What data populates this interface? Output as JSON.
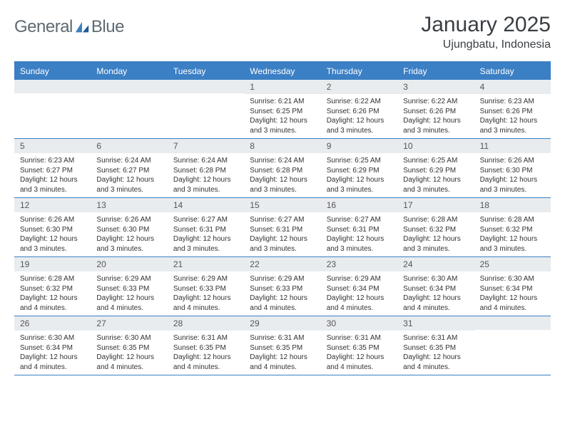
{
  "logo": {
    "text1": "General",
    "text2": "Blue"
  },
  "title": "January 2025",
  "location": "Ujungbatu, Indonesia",
  "colors": {
    "header_bg": "#3b7fc4",
    "header_text": "#ffffff",
    "daynum_bg": "#e9ecef",
    "border": "#3b7fc4",
    "body_text": "#333333",
    "logo_gray": "#5f6a72",
    "logo_blue": "#3b7fc4"
  },
  "weekdays": [
    "Sunday",
    "Monday",
    "Tuesday",
    "Wednesday",
    "Thursday",
    "Friday",
    "Saturday"
  ],
  "weeks": [
    [
      {
        "n": "",
        "sunrise": "",
        "sunset": "",
        "daylight": ""
      },
      {
        "n": "",
        "sunrise": "",
        "sunset": "",
        "daylight": ""
      },
      {
        "n": "",
        "sunrise": "",
        "sunset": "",
        "daylight": ""
      },
      {
        "n": "1",
        "sunrise": "Sunrise: 6:21 AM",
        "sunset": "Sunset: 6:25 PM",
        "daylight": "Daylight: 12 hours and 3 minutes."
      },
      {
        "n": "2",
        "sunrise": "Sunrise: 6:22 AM",
        "sunset": "Sunset: 6:26 PM",
        "daylight": "Daylight: 12 hours and 3 minutes."
      },
      {
        "n": "3",
        "sunrise": "Sunrise: 6:22 AM",
        "sunset": "Sunset: 6:26 PM",
        "daylight": "Daylight: 12 hours and 3 minutes."
      },
      {
        "n": "4",
        "sunrise": "Sunrise: 6:23 AM",
        "sunset": "Sunset: 6:26 PM",
        "daylight": "Daylight: 12 hours and 3 minutes."
      }
    ],
    [
      {
        "n": "5",
        "sunrise": "Sunrise: 6:23 AM",
        "sunset": "Sunset: 6:27 PM",
        "daylight": "Daylight: 12 hours and 3 minutes."
      },
      {
        "n": "6",
        "sunrise": "Sunrise: 6:24 AM",
        "sunset": "Sunset: 6:27 PM",
        "daylight": "Daylight: 12 hours and 3 minutes."
      },
      {
        "n": "7",
        "sunrise": "Sunrise: 6:24 AM",
        "sunset": "Sunset: 6:28 PM",
        "daylight": "Daylight: 12 hours and 3 minutes."
      },
      {
        "n": "8",
        "sunrise": "Sunrise: 6:24 AM",
        "sunset": "Sunset: 6:28 PM",
        "daylight": "Daylight: 12 hours and 3 minutes."
      },
      {
        "n": "9",
        "sunrise": "Sunrise: 6:25 AM",
        "sunset": "Sunset: 6:29 PM",
        "daylight": "Daylight: 12 hours and 3 minutes."
      },
      {
        "n": "10",
        "sunrise": "Sunrise: 6:25 AM",
        "sunset": "Sunset: 6:29 PM",
        "daylight": "Daylight: 12 hours and 3 minutes."
      },
      {
        "n": "11",
        "sunrise": "Sunrise: 6:26 AM",
        "sunset": "Sunset: 6:30 PM",
        "daylight": "Daylight: 12 hours and 3 minutes."
      }
    ],
    [
      {
        "n": "12",
        "sunrise": "Sunrise: 6:26 AM",
        "sunset": "Sunset: 6:30 PM",
        "daylight": "Daylight: 12 hours and 3 minutes."
      },
      {
        "n": "13",
        "sunrise": "Sunrise: 6:26 AM",
        "sunset": "Sunset: 6:30 PM",
        "daylight": "Daylight: 12 hours and 3 minutes."
      },
      {
        "n": "14",
        "sunrise": "Sunrise: 6:27 AM",
        "sunset": "Sunset: 6:31 PM",
        "daylight": "Daylight: 12 hours and 3 minutes."
      },
      {
        "n": "15",
        "sunrise": "Sunrise: 6:27 AM",
        "sunset": "Sunset: 6:31 PM",
        "daylight": "Daylight: 12 hours and 3 minutes."
      },
      {
        "n": "16",
        "sunrise": "Sunrise: 6:27 AM",
        "sunset": "Sunset: 6:31 PM",
        "daylight": "Daylight: 12 hours and 3 minutes."
      },
      {
        "n": "17",
        "sunrise": "Sunrise: 6:28 AM",
        "sunset": "Sunset: 6:32 PM",
        "daylight": "Daylight: 12 hours and 3 minutes."
      },
      {
        "n": "18",
        "sunrise": "Sunrise: 6:28 AM",
        "sunset": "Sunset: 6:32 PM",
        "daylight": "Daylight: 12 hours and 3 minutes."
      }
    ],
    [
      {
        "n": "19",
        "sunrise": "Sunrise: 6:28 AM",
        "sunset": "Sunset: 6:32 PM",
        "daylight": "Daylight: 12 hours and 4 minutes."
      },
      {
        "n": "20",
        "sunrise": "Sunrise: 6:29 AM",
        "sunset": "Sunset: 6:33 PM",
        "daylight": "Daylight: 12 hours and 4 minutes."
      },
      {
        "n": "21",
        "sunrise": "Sunrise: 6:29 AM",
        "sunset": "Sunset: 6:33 PM",
        "daylight": "Daylight: 12 hours and 4 minutes."
      },
      {
        "n": "22",
        "sunrise": "Sunrise: 6:29 AM",
        "sunset": "Sunset: 6:33 PM",
        "daylight": "Daylight: 12 hours and 4 minutes."
      },
      {
        "n": "23",
        "sunrise": "Sunrise: 6:29 AM",
        "sunset": "Sunset: 6:34 PM",
        "daylight": "Daylight: 12 hours and 4 minutes."
      },
      {
        "n": "24",
        "sunrise": "Sunrise: 6:30 AM",
        "sunset": "Sunset: 6:34 PM",
        "daylight": "Daylight: 12 hours and 4 minutes."
      },
      {
        "n": "25",
        "sunrise": "Sunrise: 6:30 AM",
        "sunset": "Sunset: 6:34 PM",
        "daylight": "Daylight: 12 hours and 4 minutes."
      }
    ],
    [
      {
        "n": "26",
        "sunrise": "Sunrise: 6:30 AM",
        "sunset": "Sunset: 6:34 PM",
        "daylight": "Daylight: 12 hours and 4 minutes."
      },
      {
        "n": "27",
        "sunrise": "Sunrise: 6:30 AM",
        "sunset": "Sunset: 6:35 PM",
        "daylight": "Daylight: 12 hours and 4 minutes."
      },
      {
        "n": "28",
        "sunrise": "Sunrise: 6:31 AM",
        "sunset": "Sunset: 6:35 PM",
        "daylight": "Daylight: 12 hours and 4 minutes."
      },
      {
        "n": "29",
        "sunrise": "Sunrise: 6:31 AM",
        "sunset": "Sunset: 6:35 PM",
        "daylight": "Daylight: 12 hours and 4 minutes."
      },
      {
        "n": "30",
        "sunrise": "Sunrise: 6:31 AM",
        "sunset": "Sunset: 6:35 PM",
        "daylight": "Daylight: 12 hours and 4 minutes."
      },
      {
        "n": "31",
        "sunrise": "Sunrise: 6:31 AM",
        "sunset": "Sunset: 6:35 PM",
        "daylight": "Daylight: 12 hours and 4 minutes."
      },
      {
        "n": "",
        "sunrise": "",
        "sunset": "",
        "daylight": ""
      }
    ]
  ]
}
